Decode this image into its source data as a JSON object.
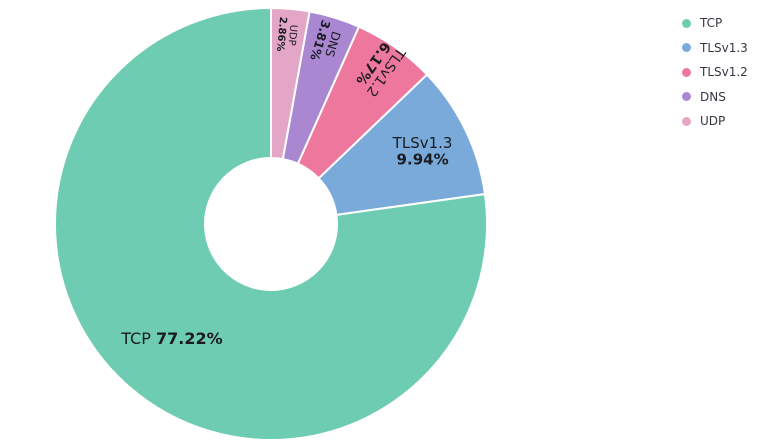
{
  "chart_data": {
    "type": "pie",
    "donut": true,
    "categories": [
      "TCP",
      "TLSv1.3",
      "TLSv1.2",
      "DNS",
      "UDP"
    ],
    "values": [
      77.22,
      9.94,
      6.17,
      3.81,
      2.86
    ],
    "value_labels": [
      "77.22%",
      "9.94%",
      "6.17%",
      "3.81%",
      "2.86%"
    ],
    "colors": [
      "#6dccb1",
      "#79aad9",
      "#ee789d",
      "#a987d1",
      "#e4a6c7"
    ],
    "legend_position": "top-right",
    "title": ""
  }
}
